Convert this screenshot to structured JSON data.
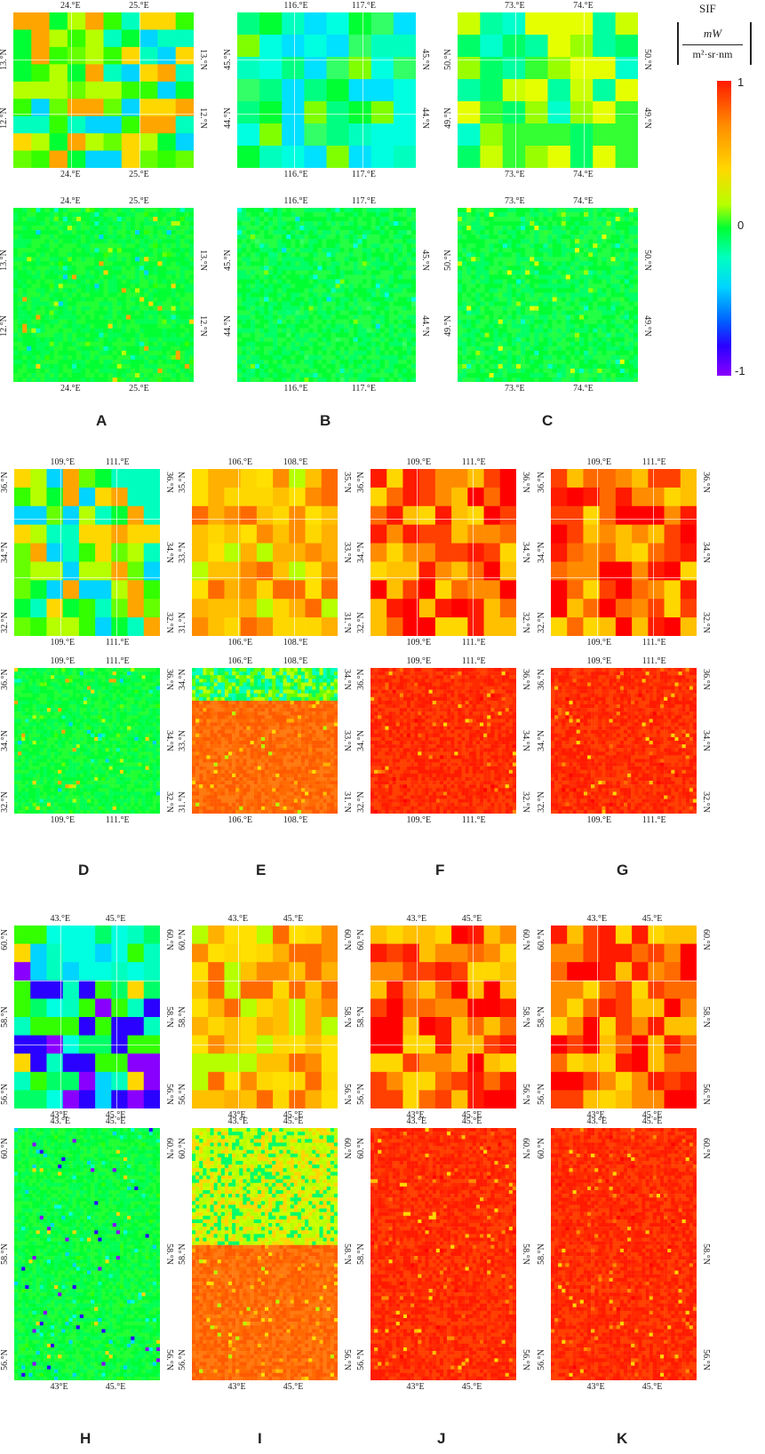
{
  "legend": {
    "title": "SIF",
    "unit_numerator": "mW",
    "unit_denominator": "m²·sr·nm",
    "max": "1",
    "mid": "0",
    "min": "-1"
  },
  "panels": [
    {
      "id": "A",
      "lon": [
        "24.°E",
        "25.°E"
      ],
      "lat": [
        "13.°N",
        "12.°N"
      ],
      "palette": "green-mixed"
    },
    {
      "id": "B",
      "lon": [
        "116.°E",
        "117.°E"
      ],
      "lat": [
        "45.°N",
        "44.°N"
      ],
      "palette": "green-cyan"
    },
    {
      "id": "C",
      "lon": [
        "73.°E",
        "74.°E"
      ],
      "lat": [
        "50.°N",
        "49.°N"
      ],
      "palette": "green-yellow"
    },
    {
      "id": "D",
      "lon": [
        "109.°E",
        "111.°E"
      ],
      "lat": [
        "36.°N",
        "34.°N",
        "32.°N"
      ],
      "palette": "green-mixed"
    },
    {
      "id": "E",
      "lon": [
        "106.°E",
        "108.°E"
      ],
      "lat": [
        "35.°N",
        "33.°N",
        "31.°N"
      ],
      "lat_bottom": [
        "34.°N",
        "33.°N",
        "31.°N"
      ],
      "palette": "yellow-orange"
    },
    {
      "id": "F",
      "lon": [
        "109.°E",
        "111.°E"
      ],
      "lat": [
        "36.°N",
        "34.°N",
        "32.°N"
      ],
      "palette": "red"
    },
    {
      "id": "G",
      "lon": [
        "109.°E",
        "111.°E"
      ],
      "lat": [
        "36.°N",
        "34.°N",
        "32.°N"
      ],
      "palette": "red"
    },
    {
      "id": "H",
      "lon": [
        "43.°E",
        "45.°E"
      ],
      "lon_bottom": [
        "43°E",
        "45.°E"
      ],
      "lat": [
        "60.°N",
        "58.°N",
        "56.°N"
      ],
      "palette": "cyan-mixed"
    },
    {
      "id": "I",
      "lon": [
        "43.°E",
        "45.°E"
      ],
      "lon_bottom": [
        "43°E",
        "45.°E"
      ],
      "lat": [
        "60.°N",
        "58.°N",
        "56.°N"
      ],
      "palette": "yellow-orange"
    },
    {
      "id": "J",
      "lon": [
        "43.°E",
        "45.°E"
      ],
      "lon_bottom": [
        "43°E",
        "45.°E"
      ],
      "lat": [
        "60.°N",
        "58.°N",
        "56.°N"
      ],
      "palette": "red"
    },
    {
      "id": "K",
      "lon": [
        "43.°E",
        "45.°E"
      ],
      "lon_bottom": [
        "43°E",
        "45.°E"
      ],
      "lat": [
        "60.°N",
        "58.°N",
        "56.°N"
      ],
      "palette": "red"
    }
  ]
}
